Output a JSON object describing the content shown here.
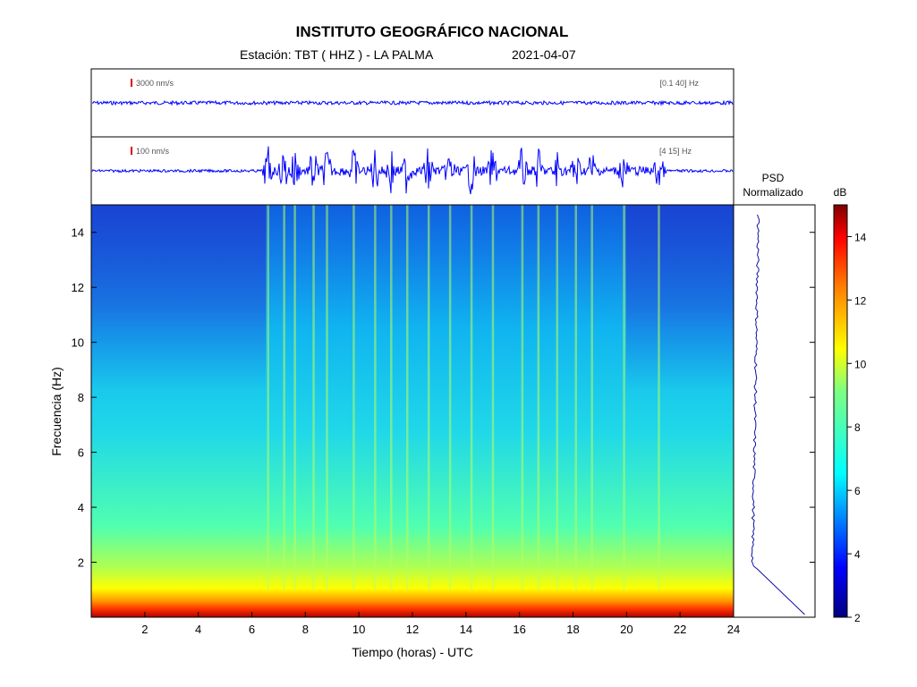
{
  "header": {
    "title": "INSTITUTO GEOGRÁFICO NACIONAL",
    "station": "Estación:  TBT ( HHZ ) - LA PALMA",
    "date": "2021-04-07"
  },
  "chart_data": {
    "type": "heatmap",
    "xlabel": "Tiempo (horas) - UTC",
    "ylabel": "Frecuencia  (Hz)",
    "xlim": [
      0,
      24
    ],
    "ylim": [
      0,
      15
    ],
    "x_ticks": [
      2,
      4,
      6,
      8,
      10,
      12,
      14,
      16,
      18,
      20,
      22,
      24
    ],
    "y_ticks": [
      2,
      4,
      6,
      8,
      10,
      12,
      14
    ],
    "colorbar": {
      "label": "dB",
      "range": [
        2,
        15
      ],
      "ticks": [
        2,
        4,
        6,
        8,
        10,
        12,
        14
      ],
      "colors": [
        "#00007f",
        "#0000ff",
        "#007fff",
        "#00ffff",
        "#7fff7f",
        "#ffff00",
        "#ff7f00",
        "#ff0000",
        "#7f0000"
      ]
    },
    "traces": [
      {
        "scale_label": "3000 nm/s",
        "band_label": "[0.1 40]  Hz"
      },
      {
        "scale_label": "100 nm/s",
        "band_label": "[4 15]  Hz"
      }
    ],
    "psd": {
      "title_line1": "PSD",
      "title_line2": "Normalizado"
    },
    "event_times_hours": [
      6.6,
      7.2,
      7.6,
      8.3,
      8.8,
      9.8,
      10.6,
      11.2,
      11.8,
      12.6,
      13.4,
      14.2,
      15.0,
      16.1,
      16.7,
      17.4,
      18.1,
      18.7,
      19.9,
      21.2
    ]
  }
}
